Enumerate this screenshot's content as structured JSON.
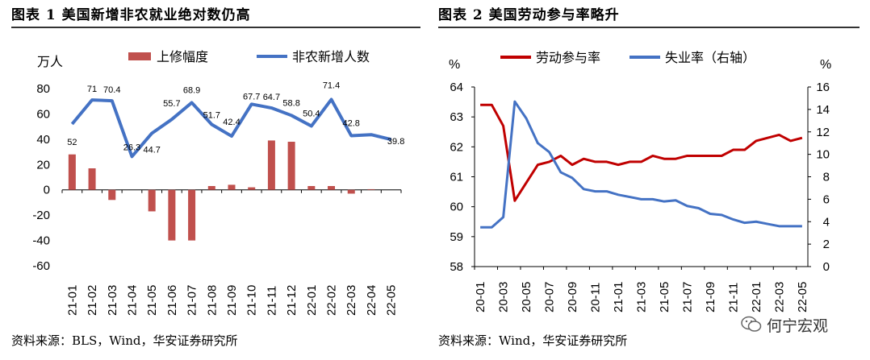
{
  "left": {
    "title": "图表 1 美国新增非农就业绝对数仍高",
    "source": "资料来源：BLS，Wind，华安证券研究所"
  },
  "right": {
    "title": "图表 2 美国劳动参与率略升",
    "source": "资料来源：Wind，华安证券研究所"
  },
  "watermark": "何宁宏观",
  "colors": {
    "red": "#C0504D",
    "darkred": "#C00000",
    "blue": "#4472C4"
  },
  "chart_data": [
    {
      "type": "bar+line",
      "title": "美国新增非农就业绝对数仍高",
      "ylabel": "万人",
      "ylim": [
        -60,
        80
      ],
      "yticks": [
        -60,
        -40,
        -20,
        0,
        20,
        40,
        60,
        80
      ],
      "categories": [
        "21-01",
        "21-02",
        "21-03",
        "21-04",
        "21-05",
        "21-06",
        "21-07",
        "21-08",
        "21-09",
        "21-10",
        "21-11",
        "21-12",
        "22-01",
        "22-02",
        "22-03",
        "22-04",
        "22-05"
      ],
      "series": [
        {
          "name": "上修幅度",
          "kind": "bar",
          "values": [
            28,
            17,
            -8,
            0,
            -17,
            -40,
            -40,
            3,
            4,
            2,
            39,
            38,
            3,
            3,
            -3,
            0.5,
            0
          ]
        },
        {
          "name": "非农新增人数",
          "kind": "line",
          "values": [
            52,
            71,
            70.4,
            26.3,
            44.7,
            55.7,
            68.9,
            51.7,
            42.4,
            67.7,
            64.7,
            58.8,
            50.4,
            71.4,
            42.8,
            43.6,
            39.8
          ],
          "labels": [
            "52",
            "71",
            "70.4",
            "26.3",
            "44.7",
            "55.7",
            "68.9",
            "51.7",
            "42.4",
            "67.7",
            "64.7",
            "58.8",
            "50.4",
            "71.4",
            "42.8",
            "",
            "39.8"
          ]
        }
      ],
      "legend": "top"
    },
    {
      "type": "line",
      "title": "美国劳动参与率略升",
      "ylabel_left": "%",
      "ylabel_right": "%",
      "ylim_left": [
        58,
        64
      ],
      "ylim_right": [
        0,
        16
      ],
      "yticks_left": [
        58,
        59,
        60,
        61,
        62,
        63,
        64
      ],
      "yticks_right": [
        0,
        2,
        4,
        6,
        8,
        10,
        12,
        14,
        16
      ],
      "tick_labels": [
        "20-01",
        "20-03",
        "20-05",
        "20-07",
        "20-09",
        "20-11",
        "21-01",
        "21-03",
        "21-05",
        "21-07",
        "21-09",
        "21-11",
        "22-01",
        "22-03",
        "22-05"
      ],
      "series": [
        {
          "name": "劳动参与率",
          "axis": "left",
          "values": [
            63.4,
            63.4,
            62.7,
            60.2,
            60.8,
            61.4,
            61.5,
            61.7,
            61.4,
            61.6,
            61.5,
            61.5,
            61.4,
            61.5,
            61.5,
            61.7,
            61.6,
            61.6,
            61.7,
            61.7,
            61.7,
            61.7,
            61.9,
            61.9,
            62.2,
            62.3,
            62.4,
            62.2,
            62.3
          ]
        },
        {
          "name": "失业率（右轴）",
          "axis": "right",
          "values": [
            3.5,
            3.5,
            4.4,
            14.7,
            13.2,
            11.0,
            10.2,
            8.4,
            7.9,
            6.9,
            6.7,
            6.7,
            6.4,
            6.2,
            6.0,
            6.0,
            5.8,
            5.9,
            5.4,
            5.2,
            4.7,
            4.6,
            4.2,
            3.9,
            4.0,
            3.8,
            3.6,
            3.6,
            3.6
          ]
        }
      ],
      "legend": "top"
    }
  ]
}
